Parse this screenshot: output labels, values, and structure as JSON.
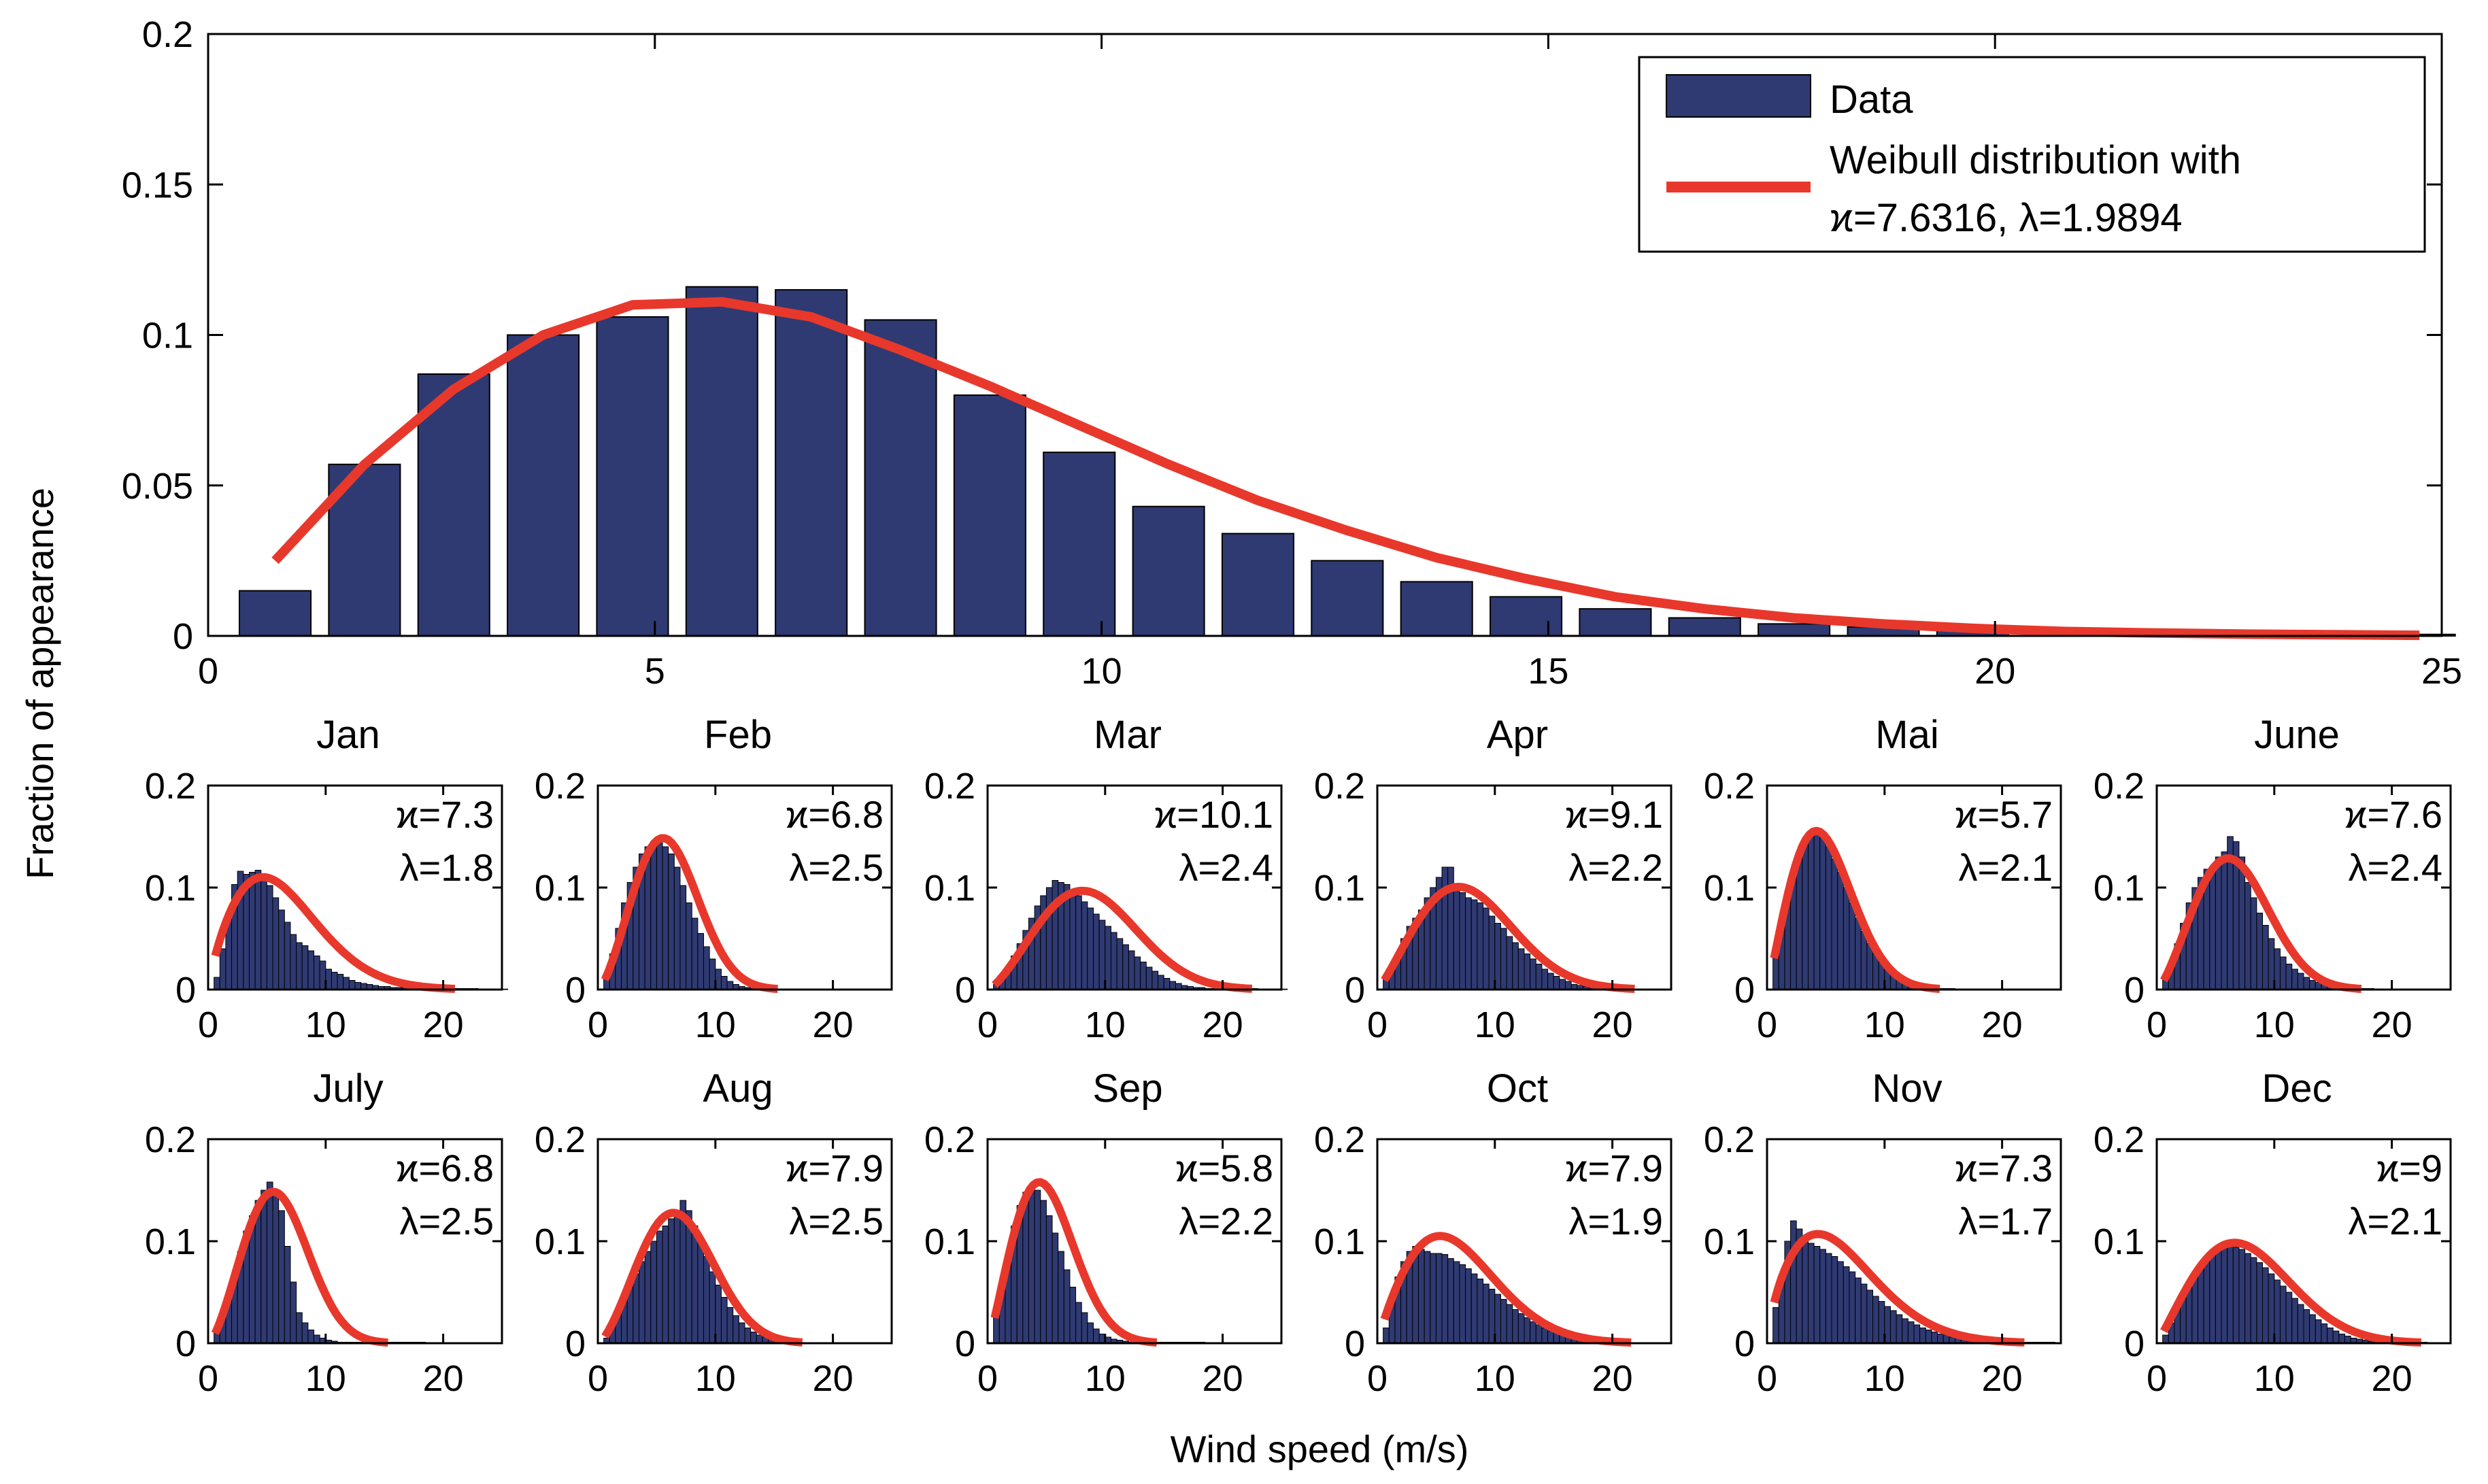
{
  "chart_data": {
    "type": "bar",
    "ylabel": "Fraction of appearance",
    "xlabel": "Wind speed (m/s)",
    "main": {
      "xlim": [
        0,
        25
      ],
      "ylim": [
        0,
        0.2
      ],
      "xticks": [
        "0",
        "5",
        "10",
        "15",
        "20",
        "25"
      ],
      "yticks": [
        "0",
        "0.05",
        "0.1",
        "0.15",
        "0.2"
      ],
      "bar_centers": [
        0.75,
        1.75,
        2.75,
        3.75,
        4.75,
        5.75,
        6.75,
        7.75,
        8.75,
        9.75,
        10.75,
        11.75,
        12.75,
        13.75,
        14.75,
        15.75,
        16.75,
        17.75,
        18.75,
        19.75,
        20.75,
        21.75,
        22.75,
        23.75,
        24.75
      ],
      "bar_values": [
        0.015,
        0.057,
        0.087,
        0.1,
        0.106,
        0.116,
        0.115,
        0.105,
        0.08,
        0.061,
        0.043,
        0.034,
        0.025,
        0.018,
        0.013,
        0.009,
        0.006,
        0.004,
        0.003,
        0.002,
        0.0015,
        0.001,
        0.001,
        0.0007,
        0.0005
      ],
      "fit_x": [
        0.75,
        1.75,
        2.75,
        3.75,
        4.75,
        5.75,
        6.75,
        7.75,
        8.75,
        9.75,
        10.75,
        11.75,
        12.75,
        13.75,
        14.75,
        15.75,
        16.75,
        17.75,
        18.75,
        19.75,
        20.75,
        21.75,
        22.75,
        23.75,
        24.75
      ],
      "fit_y": [
        0.025,
        0.057,
        0.082,
        0.1,
        0.11,
        0.111,
        0.106,
        0.095,
        0.083,
        0.07,
        0.057,
        0.045,
        0.035,
        0.026,
        0.019,
        0.013,
        0.009,
        0.006,
        0.004,
        0.0025,
        0.0015,
        0.001,
        0.0006,
        0.0004,
        0.0002
      ]
    },
    "legend": {
      "data_label": "Data",
      "fit_label_line1": "Weibull distribution with",
      "fit_label_line2": "ϰ=7.6316, λ=1.9894"
    },
    "monthly": {
      "xlim": [
        0,
        25
      ],
      "ylim": [
        0,
        0.2
      ],
      "xticks": [
        "0",
        "10",
        "20"
      ],
      "yticks": [
        "0",
        "0.1",
        "0.2"
      ],
      "months": [
        {
          "name": "Jan",
          "k": "ϰ=7.3",
          "lambda": "λ=1.8",
          "scale": 7.3,
          "shape": 1.8,
          "bars": [
            0.012,
            0.04,
            0.075,
            0.103,
            0.116,
            0.113,
            0.115,
            0.117,
            0.113,
            0.102,
            0.09,
            0.078,
            0.066,
            0.054,
            0.046,
            0.043,
            0.038,
            0.033,
            0.028,
            0.02,
            0.017,
            0.015,
            0.012,
            0.009,
            0.007,
            0.006,
            0.005,
            0.004,
            0.003,
            0.003,
            0.002,
            0.002,
            0.002,
            0.001,
            0.001,
            0.001,
            0.001,
            0.001,
            0.001,
            0.001,
            0.001,
            0.001,
            0.001,
            0.001,
            0.001,
            0.0005,
            0.0005,
            0.0005,
            0.0005,
            0.0005
          ]
        },
        {
          "name": "Feb",
          "k": "ϰ=6.8",
          "lambda": "λ=2.5",
          "scale": 6.8,
          "shape": 2.5,
          "bars": [
            0.01,
            0.035,
            0.06,
            0.085,
            0.105,
            0.12,
            0.133,
            0.14,
            0.145,
            0.147,
            0.14,
            0.133,
            0.12,
            0.102,
            0.085,
            0.07,
            0.055,
            0.042,
            0.03,
            0.02,
            0.013,
            0.008,
            0.005,
            0.003,
            0.002,
            0.001,
            0.001
          ]
        },
        {
          "name": "Mar",
          "k": "ϰ=10.1",
          "lambda": "λ=2.4",
          "scale": 10.1,
          "shape": 2.4,
          "bars": [
            0.005,
            0.012,
            0.022,
            0.033,
            0.045,
            0.058,
            0.07,
            0.082,
            0.092,
            0.1,
            0.107,
            0.105,
            0.103,
            0.098,
            0.092,
            0.086,
            0.08,
            0.074,
            0.068,
            0.062,
            0.056,
            0.05,
            0.044,
            0.038,
            0.032,
            0.027,
            0.022,
            0.018,
            0.014,
            0.011,
            0.008,
            0.006,
            0.004,
            0.003,
            0.002,
            0.002,
            0.001,
            0.001,
            0.001,
            0.001,
            0.001,
            0.001,
            0.001,
            0.001,
            0.001,
            0.0005,
            0.0005,
            0.0005,
            0.0005,
            0.0005
          ]
        },
        {
          "name": "Apr",
          "k": "ϰ=9.1",
          "lambda": "λ=2.2",
          "scale": 9.1,
          "shape": 2.2,
          "bars": [
            0.01,
            0.022,
            0.035,
            0.05,
            0.062,
            0.07,
            0.078,
            0.09,
            0.1,
            0.11,
            0.12,
            0.12,
            0.1,
            0.095,
            0.09,
            0.088,
            0.085,
            0.08,
            0.072,
            0.065,
            0.06,
            0.052,
            0.046,
            0.04,
            0.035,
            0.03,
            0.025,
            0.02,
            0.016,
            0.013,
            0.01,
            0.008,
            0.005,
            0.004,
            0.003,
            0.002,
            0.002,
            0.001,
            0.001,
            0.001
          ]
        },
        {
          "name": "Mai",
          "k": "ϰ=5.7",
          "lambda": "λ=2.1",
          "scale": 5.7,
          "shape": 2.1,
          "bars": [
            0.038,
            0.06,
            0.085,
            0.11,
            0.13,
            0.145,
            0.155,
            0.155,
            0.15,
            0.14,
            0.128,
            0.115,
            0.1,
            0.085,
            0.07,
            0.057,
            0.045,
            0.035,
            0.027,
            0.02,
            0.014,
            0.01,
            0.007,
            0.005,
            0.003,
            0.002,
            0.002,
            0.001,
            0.001,
            0.001,
            0.001
          ]
        },
        {
          "name": "June",
          "k": "ϰ=7.6",
          "lambda": "λ=2.4",
          "scale": 7.6,
          "shape": 2.4,
          "bars": [
            0.01,
            0.025,
            0.045,
            0.065,
            0.085,
            0.1,
            0.11,
            0.118,
            0.12,
            0.13,
            0.135,
            0.15,
            0.145,
            0.13,
            0.105,
            0.09,
            0.075,
            0.063,
            0.05,
            0.04,
            0.032,
            0.025,
            0.02,
            0.016,
            0.012,
            0.009,
            0.007,
            0.005,
            0.004,
            0.003,
            0.002,
            0.002,
            0.001,
            0.001,
            0.001,
            0.001
          ]
        },
        {
          "name": "July",
          "k": "ϰ=6.8",
          "lambda": "λ=2.5",
          "scale": 6.8,
          "shape": 2.5,
          "bars": [
            0.01,
            0.025,
            0.045,
            0.068,
            0.09,
            0.11,
            0.125,
            0.14,
            0.15,
            0.158,
            0.15,
            0.13,
            0.095,
            0.06,
            0.03,
            0.02,
            0.013,
            0.008,
            0.005,
            0.003,
            0.002,
            0.001,
            0.001,
            0.001,
            0.001,
            0.001,
            0.001,
            0.001,
            0.001,
            0.001,
            0.001,
            0.001,
            0.001,
            0.001,
            0.001,
            0.001
          ]
        },
        {
          "name": "Aug",
          "k": "ϰ=7.9",
          "lambda": "λ=2.5",
          "scale": 7.9,
          "shape": 2.5,
          "bars": [
            0.005,
            0.015,
            0.028,
            0.042,
            0.055,
            0.068,
            0.08,
            0.09,
            0.1,
            0.11,
            0.115,
            0.122,
            0.128,
            0.14,
            0.13,
            0.115,
            0.1,
            0.085,
            0.07,
            0.057,
            0.045,
            0.035,
            0.027,
            0.02,
            0.015,
            0.011,
            0.008,
            0.006,
            0.004,
            0.003,
            0.002
          ]
        },
        {
          "name": "Sep",
          "k": "ϰ=5.8",
          "lambda": "λ=2.2",
          "scale": 5.8,
          "shape": 2.2,
          "bars": [
            0.03,
            0.055,
            0.085,
            0.115,
            0.135,
            0.148,
            0.155,
            0.15,
            0.14,
            0.125,
            0.108,
            0.09,
            0.072,
            0.055,
            0.04,
            0.03,
            0.02,
            0.014,
            0.009,
            0.006,
            0.004,
            0.003,
            0.002,
            0.001,
            0.001,
            0.001,
            0.001,
            0.001,
            0.001,
            0.001,
            0.001,
            0.001,
            0.001,
            0.001,
            0.001,
            0.001
          ]
        },
        {
          "name": "Oct",
          "k": "ϰ=7.9",
          "lambda": "λ=1.9",
          "scale": 7.9,
          "shape": 1.9,
          "bars": [
            0.015,
            0.04,
            0.065,
            0.08,
            0.09,
            0.095,
            0.092,
            0.09,
            0.088,
            0.088,
            0.087,
            0.083,
            0.08,
            0.077,
            0.073,
            0.068,
            0.063,
            0.058,
            0.053,
            0.048,
            0.043,
            0.038,
            0.033,
            0.029,
            0.025,
            0.021,
            0.018,
            0.015,
            0.012,
            0.01,
            0.008,
            0.006,
            0.005,
            0.004,
            0.003,
            0.002,
            0.002,
            0.001,
            0.001,
            0.001,
            0.001,
            0.001
          ]
        },
        {
          "name": "Nov",
          "k": "ϰ=7.3",
          "lambda": "λ=1.7",
          "scale": 7.3,
          "shape": 1.7,
          "bars": [
            0.035,
            0.06,
            0.1,
            0.12,
            0.112,
            0.1,
            0.098,
            0.095,
            0.092,
            0.088,
            0.085,
            0.08,
            0.075,
            0.07,
            0.064,
            0.058,
            0.052,
            0.046,
            0.041,
            0.036,
            0.032,
            0.028,
            0.024,
            0.021,
            0.018,
            0.015,
            0.013,
            0.011,
            0.009,
            0.008,
            0.006,
            0.005,
            0.004,
            0.004,
            0.003,
            0.003,
            0.002,
            0.002,
            0.002,
            0.001,
            0.001,
            0.001,
            0.001,
            0.001,
            0.001,
            0.001,
            0.001,
            0.001
          ]
        },
        {
          "name": "Dec",
          "k": "ϰ=9",
          "lambda": "λ=2.1",
          "scale": 9.0,
          "shape": 2.1,
          "bars": [
            0.008,
            0.02,
            0.035,
            0.048,
            0.06,
            0.07,
            0.078,
            0.085,
            0.09,
            0.093,
            0.095,
            0.095,
            0.094,
            0.092,
            0.088,
            0.084,
            0.079,
            0.074,
            0.068,
            0.062,
            0.056,
            0.05,
            0.044,
            0.038,
            0.033,
            0.028,
            0.023,
            0.019,
            0.015,
            0.012,
            0.009,
            0.007,
            0.005,
            0.004,
            0.003,
            0.002,
            0.002,
            0.001,
            0.001,
            0.001,
            0.001,
            0.001,
            0.001,
            0.001,
            0.001
          ]
        }
      ]
    }
  },
  "colors": {
    "bar": "#2f3a73",
    "fit": "#e8382c"
  }
}
